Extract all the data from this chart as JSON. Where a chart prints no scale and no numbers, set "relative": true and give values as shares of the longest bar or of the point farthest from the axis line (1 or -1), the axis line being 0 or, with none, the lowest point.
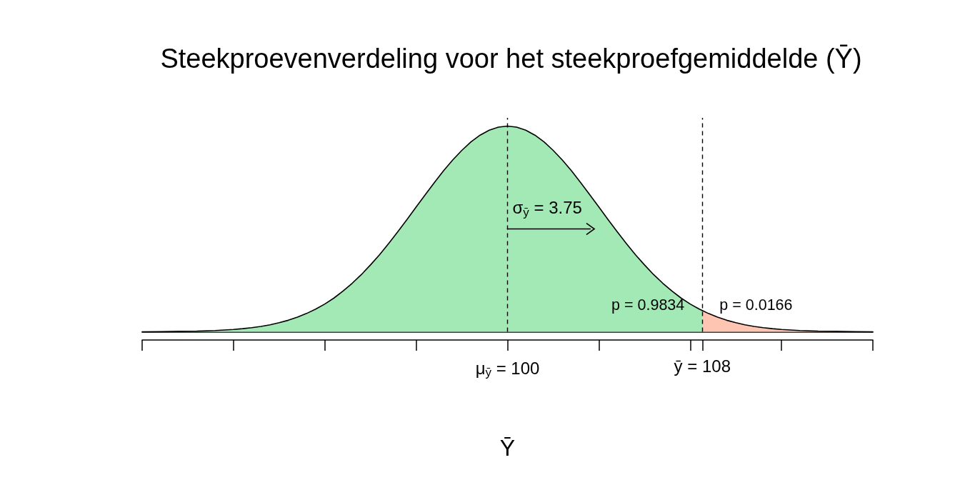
{
  "chart_data": {
    "type": "area",
    "title": "Steekproevenverdeling voor het steekproefgemiddelde (Ȳ)",
    "xlabel": "Ȳ",
    "relative": true,
    "xlim": [
      85,
      115
    ],
    "xticks": [
      {
        "value": 85,
        "label": null
      },
      {
        "value": 88.75,
        "label": null
      },
      {
        "value": 92.5,
        "label": null
      },
      {
        "value": 96.25,
        "label": null
      },
      {
        "value": 100,
        "label": "μ$_{ȳ}$ = 100"
      },
      {
        "value": 103.75,
        "label": null
      },
      {
        "value": 107.5,
        "label": null
      },
      {
        "value": 108,
        "label": "ȳ = 108"
      },
      {
        "value": 111.25,
        "label": null
      },
      {
        "value": 115,
        "label": null
      }
    ],
    "series": [
      {
        "color": "#a3e9b5",
        "x": [
          85,
          85.75,
          86.5,
          87.25,
          88,
          88.75,
          89.125,
          89.5,
          89.875,
          90.25,
          90.625,
          91,
          91.375,
          91.75,
          92.125,
          92.5,
          92.875,
          93.25,
          93.625,
          94,
          94.375,
          94.75,
          95.125,
          95.5,
          95.875,
          96.25,
          96.625,
          97,
          97.375,
          97.75,
          98.125,
          98.5,
          98.875,
          99.25,
          99.625,
          100,
          100.375,
          100.75,
          101.125,
          101.5,
          101.875,
          102.25,
          102.625,
          103,
          103.375,
          103.75,
          104.125,
          104.5,
          104.875,
          105.25,
          105.625,
          106,
          106.375,
          106.75,
          107.125,
          107.5,
          107.875,
          108
        ],
        "values": [
          0.0,
          0.001,
          0.002,
          0.003,
          0.006,
          0.011,
          0.015,
          0.02,
          0.026,
          0.034,
          0.044,
          0.056,
          0.071,
          0.089,
          0.11,
          0.135,
          0.164,
          0.198,
          0.236,
          0.278,
          0.325,
          0.375,
          0.43,
          0.487,
          0.546,
          0.607,
          0.667,
          0.726,
          0.783,
          0.835,
          0.882,
          0.923,
          0.956,
          0.98,
          0.995,
          1,
          0.995,
          0.98,
          0.956,
          0.923,
          0.882,
          0.835,
          0.783,
          0.726,
          0.667,
          0.607,
          0.546,
          0.487,
          0.43,
          0.375,
          0.325,
          0.278,
          0.236,
          0.198,
          0.164,
          0.135,
          0.11,
          0.103
        ]
      },
      {
        "color": "#fdc5b2",
        "x": [
          108,
          108.25,
          108.625,
          109,
          109.375,
          109.75,
          110.125,
          110.5,
          110.875,
          111.25,
          112,
          112.75,
          113.5,
          114.25,
          115
        ],
        "values": [
          0.103,
          0.089,
          0.071,
          0.056,
          0.044,
          0.034,
          0.026,
          0.02,
          0.015,
          0.011,
          0.006,
          0.003,
          0.002,
          0.001,
          0.0
        ]
      },
      {
        "type": "line",
        "color": "#000000",
        "x": [
          100,
          103.4
        ],
        "values": [
          0.5,
          0.5
        ]
      }
    ],
    "ref_lines": [
      {
        "axis": "x",
        "value": 100,
        "color": "#000000",
        "line_style": "dashed"
      },
      {
        "axis": "x",
        "value": 108,
        "color": "#000000",
        "line_style": "dashed"
      }
    ],
    "annotations": [
      "σ$_{ȳ}$ = 3.75",
      "p = 0.9834",
      "p = 0.0166"
    ]
  }
}
